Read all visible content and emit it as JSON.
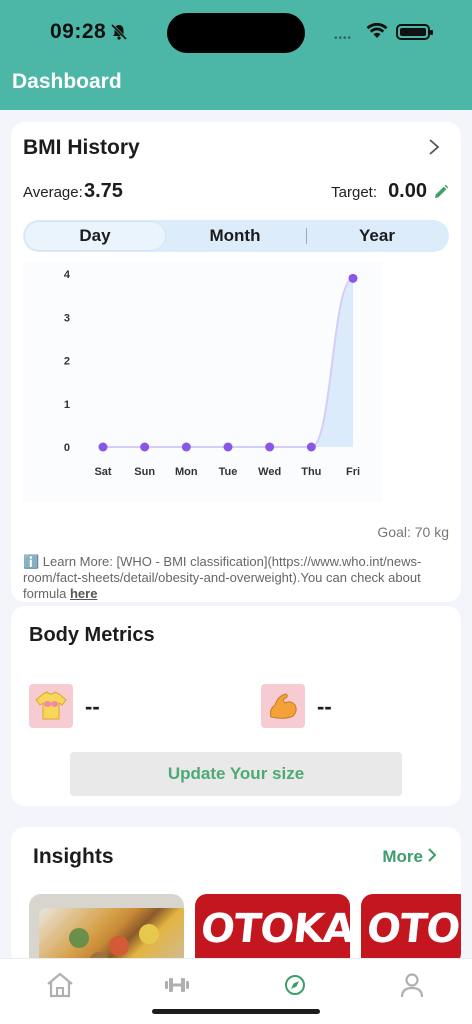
{
  "status_bar": {
    "time": "09:28"
  },
  "header": {
    "title": "Dashboard"
  },
  "bmi": {
    "title": "BMI History",
    "average_label": "Average:",
    "average_value": "3.75",
    "target_label": "Target:",
    "target_value": "0.00",
    "tabs": [
      "Day",
      "Month",
      "Year"
    ],
    "active_tab": "Day",
    "goal_text": "Goal: 70 kg",
    "learn_text": "ℹ️ Learn More: [WHO - BMI classification](https://www.who.int/news-room/fact-sheets/detail/obesity-and-overweight).You can check about formula ",
    "learn_link": "here"
  },
  "chart_data": {
    "type": "area",
    "categories": [
      "Sat",
      "Sun",
      "Mon",
      "Tue",
      "Wed",
      "Thu",
      "Fri"
    ],
    "values": [
      0,
      0,
      0,
      0,
      0,
      0,
      3.9
    ],
    "y_ticks": [
      0,
      1,
      2,
      3,
      4
    ],
    "ylim": [
      0,
      4
    ],
    "title": "",
    "xlabel": "",
    "ylabel": "",
    "grid": false,
    "colors": {
      "point": "#8a56e6",
      "line": "#d6cdf7",
      "fill": "#dcebfb"
    }
  },
  "body_metrics": {
    "title": "Body Metrics",
    "items": [
      {
        "icon": "shirt-icon",
        "value": "--"
      },
      {
        "icon": "flexed-biceps-icon",
        "value": "--"
      }
    ],
    "update_button": "Update Your size"
  },
  "insights": {
    "title": "Insights",
    "more_label": "More",
    "tiles": [
      {
        "kind": "food-image"
      },
      {
        "kind": "promo",
        "text": "OTOKAN"
      },
      {
        "kind": "promo",
        "text": "OTOKA"
      }
    ]
  },
  "tabbar": {
    "items": [
      "home-icon",
      "dumbbell-icon",
      "compass-icon",
      "profile-icon"
    ],
    "active": "compass-icon",
    "colors": {
      "active": "#3e9e6a",
      "inactive": "#b0b0b0"
    }
  }
}
